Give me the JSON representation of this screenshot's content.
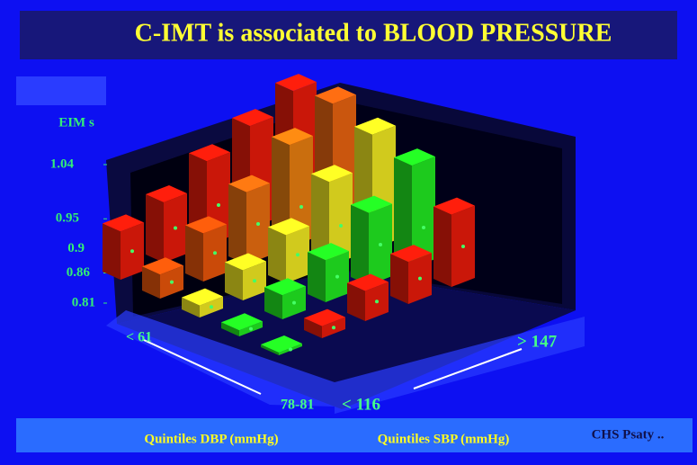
{
  "chart_data": {
    "type": "bar3d",
    "title": "C-IMT is associated to BLOOD PRESSURE",
    "y_label": "EIM s",
    "ylim": [
      0.81,
      1.04
    ],
    "yticks": [
      0.81,
      0.86,
      0.9,
      0.95,
      1.04
    ],
    "dbp_axis": {
      "label": "Quintiles DBP  (mmHg)",
      "start": "< 61",
      "end": "78-81"
    },
    "sbp_axis": {
      "label": "Quintiles  SBP (mmHg)",
      "start": "< 116",
      "end": "> 147"
    },
    "series": [
      {
        "values": [
          0.89,
          0.91,
          0.95,
          0.98,
          1.01
        ],
        "colors": [
          "#e01a0a",
          "#e01a0a",
          "#e01a0a",
          "#e01a0a",
          "#e01a0a"
        ]
      },
      {
        "values": [
          0.85,
          0.89,
          0.93,
          0.98,
          1.02
        ],
        "colors": [
          "#e0520a",
          "#e0520a",
          "#e06a10",
          "#e07a10",
          "#e06010"
        ]
      },
      {
        "values": [
          0.83,
          0.86,
          0.89,
          0.95,
          1.0
        ],
        "colors": [
          "#e8e020",
          "#e8e020",
          "#e8e020",
          "#e8e020",
          "#e8e020"
        ]
      },
      {
        "values": [
          0.82,
          0.85,
          0.88,
          0.93,
          0.98
        ],
        "colors": [
          "#20e020",
          "#20e020",
          "#20e020",
          "#20e020",
          "#20e020"
        ]
      },
      {
        "values": [
          0.81,
          0.83,
          0.86,
          0.88,
          0.93
        ],
        "colors": [
          "#20e020",
          "#e01a0a",
          "#e01a0a",
          "#e01a0a",
          "#e01a0a"
        ]
      }
    ],
    "source": "CHS  Psaty .."
  }
}
